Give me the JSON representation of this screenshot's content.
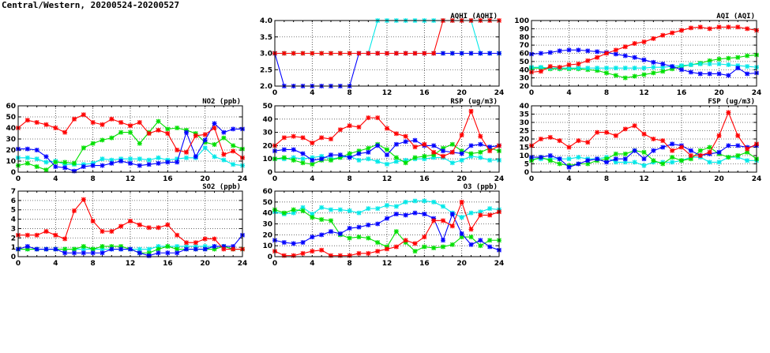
{
  "title": "Central/Western, 20200524-20200527",
  "colors": {
    "red": "#ff0000",
    "green": "#00e000",
    "blue": "#0000ff",
    "cyan": "#00e8e8"
  },
  "chart_data": [
    {
      "type": "line",
      "title": "AQHI (AQHI)",
      "ylim": [
        2,
        4
      ],
      "yticks": [
        "2.0",
        "2.5",
        "3.0",
        "3.5",
        "4.0"
      ],
      "xticks": [
        "0",
        "4",
        "8",
        "12",
        "16",
        "20",
        "24"
      ],
      "xlim": [
        0,
        24
      ],
      "grid": true,
      "series": [
        {
          "name": "green",
          "values": [
            3,
            3,
            3,
            3,
            3,
            3,
            3,
            3,
            3,
            3,
            3,
            3,
            3,
            3,
            3,
            3,
            3,
            3,
            3,
            3,
            3,
            3,
            3,
            3,
            3
          ]
        },
        {
          "name": "cyan",
          "values": [
            3,
            3,
            3,
            3,
            3,
            3,
            3,
            3,
            3,
            3,
            3,
            4,
            4,
            4,
            4,
            4,
            4,
            4,
            4,
            4,
            4,
            4,
            3,
            3,
            3
          ]
        },
        {
          "name": "blue",
          "values": [
            3,
            2,
            2,
            2,
            2,
            2,
            2,
            2,
            2,
            3,
            3,
            3,
            3,
            3,
            3,
            3,
            3,
            3,
            3,
            3,
            3,
            3,
            3,
            3,
            3
          ]
        },
        {
          "name": "red",
          "values": [
            3,
            3,
            3,
            3,
            3,
            3,
            3,
            3,
            3,
            3,
            3,
            3,
            3,
            3,
            3,
            3,
            3,
            3,
            4,
            4,
            4,
            4,
            4,
            4,
            4
          ]
        }
      ]
    },
    {
      "type": "line",
      "title": "AQI (AQI)",
      "ylim": [
        20,
        100
      ],
      "yticks": [
        "20",
        "30",
        "40",
        "50",
        "60",
        "70",
        "80",
        "90",
        "100"
      ],
      "xticks": [
        "0",
        "4",
        "8",
        "12",
        "16",
        "20",
        "24"
      ],
      "xlim": [
        0,
        24
      ],
      "grid": true,
      "series": [
        {
          "name": "green",
          "values": [
            42,
            42,
            41,
            41,
            41,
            41,
            40,
            39,
            36,
            33,
            30,
            32,
            34,
            36,
            38,
            41,
            44,
            46,
            48,
            51,
            53,
            54,
            55,
            57,
            58
          ]
        },
        {
          "name": "cyan",
          "values": [
            43,
            43,
            42,
            42,
            42,
            42,
            42,
            42,
            42,
            42,
            42,
            42,
            42,
            43,
            43,
            44,
            45,
            46,
            47,
            47,
            47,
            46,
            45,
            44,
            43
          ]
        },
        {
          "name": "blue",
          "values": [
            59,
            60,
            61,
            63,
            64,
            64,
            63,
            62,
            61,
            59,
            57,
            55,
            52,
            49,
            47,
            44,
            40,
            37,
            35,
            35,
            35,
            33,
            42,
            35,
            36
          ]
        },
        {
          "name": "red",
          "values": [
            37,
            38,
            44,
            43,
            46,
            47,
            51,
            55,
            60,
            64,
            68,
            72,
            74,
            78,
            82,
            85,
            88,
            91,
            92,
            90,
            92,
            92,
            92,
            90,
            88
          ]
        }
      ]
    },
    {
      "type": "line",
      "title": "NO2 (ppb)",
      "ylim": [
        0,
        60
      ],
      "yticks": [
        "0",
        "10",
        "20",
        "30",
        "40",
        "50",
        "60"
      ],
      "xticks": [
        "0",
        "4",
        "8",
        "12",
        "16",
        "20",
        "24"
      ],
      "xlim": [
        0,
        24
      ],
      "grid": true,
      "series": [
        {
          "name": "cyan",
          "values": [
            13,
            13,
            12,
            9,
            10,
            7,
            7,
            7,
            8,
            12,
            11,
            12,
            12,
            12,
            11,
            13,
            11,
            12,
            13,
            13,
            22,
            14,
            11,
            7,
            6
          ]
        },
        {
          "name": "green",
          "values": [
            6,
            8,
            5,
            2,
            9,
            9,
            8,
            22,
            26,
            29,
            31,
            36,
            36,
            26,
            36,
            46,
            39,
            40,
            38,
            35,
            27,
            25,
            31,
            24,
            21
          ]
        },
        {
          "name": "blue",
          "values": [
            21,
            21,
            20,
            14,
            5,
            4,
            1,
            5,
            6,
            6,
            8,
            10,
            8,
            6,
            7,
            8,
            9,
            9,
            36,
            14,
            29,
            44,
            36,
            39,
            39
          ]
        },
        {
          "name": "red",
          "values": [
            40,
            47,
            45,
            43,
            40,
            36,
            48,
            52,
            45,
            43,
            48,
            45,
            42,
            45,
            35,
            38,
            35,
            20,
            18,
            33,
            34,
            40,
            16,
            19,
            13
          ]
        }
      ]
    },
    {
      "type": "line",
      "title": "RSP (ug/m3)",
      "ylim": [
        0,
        50
      ],
      "yticks": [
        "0",
        "10",
        "20",
        "30",
        "40",
        "50"
      ],
      "xticks": [
        "0",
        "4",
        "8",
        "12",
        "16",
        "20",
        "24"
      ],
      "xlim": [
        0,
        24
      ],
      "grid": true,
      "series": [
        {
          "name": "cyan",
          "values": [
            10,
            10,
            11,
            10,
            11,
            12,
            10,
            11,
            12,
            9,
            10,
            8,
            6,
            8,
            9,
            10,
            10,
            11,
            11,
            7,
            9,
            12,
            11,
            9,
            9
          ]
        },
        {
          "name": "green",
          "values": [
            10,
            11,
            9,
            7,
            6,
            9,
            9,
            11,
            14,
            16,
            18,
            21,
            17,
            11,
            7,
            11,
            12,
            13,
            18,
            21,
            16,
            14,
            15,
            18,
            16
          ]
        },
        {
          "name": "blue",
          "values": [
            16,
            17,
            17,
            14,
            9,
            10,
            13,
            13,
            11,
            14,
            15,
            20,
            13,
            21,
            23,
            24,
            20,
            20,
            16,
            15,
            14,
            20,
            21,
            19,
            20
          ]
        },
        {
          "name": "red",
          "values": [
            20,
            26,
            27,
            26,
            22,
            26,
            25,
            32,
            35,
            34,
            41,
            41,
            33,
            29,
            27,
            19,
            21,
            15,
            12,
            15,
            28,
            46,
            27,
            16,
            20
          ]
        }
      ]
    },
    {
      "type": "line",
      "title": "FSP (ug/m3)",
      "ylim": [
        0,
        40
      ],
      "yticks": [
        "0",
        "5",
        "10",
        "15",
        "20",
        "25",
        "30",
        "35",
        "40"
      ],
      "xticks": [
        "0",
        "4",
        "8",
        "12",
        "16",
        "20",
        "24"
      ],
      "xlim": [
        0,
        24
      ],
      "grid": true,
      "series": [
        {
          "name": "cyan",
          "values": [
            8,
            8,
            8,
            8,
            8,
            9,
            8,
            8,
            9,
            6,
            6,
            6,
            4,
            6,
            6,
            6,
            7,
            9,
            9,
            6,
            6,
            9,
            9,
            7,
            7
          ]
        },
        {
          "name": "green",
          "values": [
            7,
            9,
            7,
            5,
            4,
            5,
            5,
            7,
            8,
            11,
            11,
            13,
            12,
            7,
            5,
            9,
            7,
            8,
            13,
            15,
            11,
            9,
            10,
            12,
            8
          ]
        },
        {
          "name": "blue",
          "values": [
            9,
            9,
            10,
            8,
            3,
            5,
            7,
            8,
            6,
            8,
            8,
            13,
            8,
            13,
            15,
            17,
            16,
            13,
            10,
            11,
            12,
            16,
            16,
            15,
            16
          ]
        },
        {
          "name": "red",
          "values": [
            16,
            20,
            21,
            19,
            15,
            19,
            18,
            24,
            24,
            22,
            26,
            28,
            23,
            20,
            19,
            13,
            15,
            10,
            10,
            12,
            22,
            36,
            22,
            14,
            17
          ]
        }
      ]
    },
    {
      "type": "line",
      "title": "SO2 (ppb)",
      "ylim": [
        0,
        7
      ],
      "yticks": [
        "0",
        "1",
        "2",
        "3",
        "4",
        "5",
        "6",
        "7"
      ],
      "xticks": [
        "0",
        "4",
        "8",
        "12",
        "16",
        "20",
        "24"
      ],
      "xlim": [
        0,
        24
      ],
      "grid": true,
      "series": [
        {
          "name": "cyan",
          "values": [
            0.8,
            0.8,
            0.8,
            0.8,
            0.8,
            0.8,
            0.8,
            0.8,
            0.8,
            0.8,
            0.8,
            0.8,
            0.8,
            0.8,
            0.8,
            1.1,
            1.1,
            1.1,
            1.1,
            1.1,
            1.1,
            1.1,
            1.1,
            0.8,
            0.8
          ]
        },
        {
          "name": "green",
          "values": [
            0.8,
            0.8,
            0.8,
            0.8,
            0.8,
            0.8,
            0.8,
            1.1,
            0.8,
            1.1,
            1.1,
            1.1,
            0.8,
            0.4,
            0.4,
            0.8,
            1.1,
            0.8,
            0.8,
            0.8,
            0.8,
            0.8,
            1.1,
            0.8,
            0.8
          ]
        },
        {
          "name": "blue",
          "values": [
            0.8,
            1.1,
            0.8,
            0.8,
            0.8,
            0.4,
            0.4,
            0.4,
            0.4,
            0.4,
            0.8,
            0.8,
            0.8,
            0.4,
            0.1,
            0.4,
            0.4,
            0.4,
            0.8,
            0.8,
            0.8,
            1.1,
            1.1,
            1.1,
            2.3
          ]
        },
        {
          "name": "red",
          "values": [
            2.3,
            2.3,
            2.3,
            2.7,
            2.3,
            1.9,
            4.9,
            6.1,
            3.8,
            2.7,
            2.7,
            3.25,
            3.8,
            3.4,
            3.1,
            3.1,
            3.4,
            2.3,
            1.5,
            1.5,
            1.9,
            1.9,
            0.8,
            0.8,
            0.8
          ]
        }
      ]
    },
    {
      "type": "line",
      "title": "O3 (ppb)",
      "ylim": [
        0,
        60
      ],
      "yticks": [
        "0",
        "10",
        "20",
        "30",
        "40",
        "50",
        "60"
      ],
      "xticks": [
        "0",
        "4",
        "8",
        "12",
        "16",
        "20",
        "24"
      ],
      "xlim": [
        0,
        24
      ],
      "grid": true,
      "series": [
        {
          "name": "cyan",
          "values": [
            41,
            39,
            40,
            45,
            39,
            45,
            43,
            43,
            42,
            40,
            44,
            44,
            47,
            46,
            50,
            51,
            51,
            50,
            46,
            40,
            36,
            40,
            41,
            44,
            43
          ]
        },
        {
          "name": "green",
          "values": [
            43,
            40,
            43,
            42,
            36,
            34,
            33,
            20,
            17,
            18,
            17,
            13,
            9,
            23,
            13,
            5,
            9,
            8,
            9,
            11,
            18,
            18,
            10,
            15,
            15
          ]
        },
        {
          "name": "blue",
          "values": [
            15,
            13,
            12,
            13,
            18,
            20,
            23,
            21,
            26,
            27,
            29,
            30,
            35,
            39,
            38,
            40,
            39,
            35,
            15,
            39,
            21,
            11,
            15,
            9,
            6
          ]
        },
        {
          "name": "red",
          "values": [
            5,
            1,
            1,
            3,
            5,
            6,
            1,
            1,
            1,
            3,
            3,
            5,
            7,
            9,
            15,
            12,
            18,
            33,
            33,
            28,
            50,
            25,
            38,
            38,
            41
          ]
        }
      ]
    }
  ]
}
